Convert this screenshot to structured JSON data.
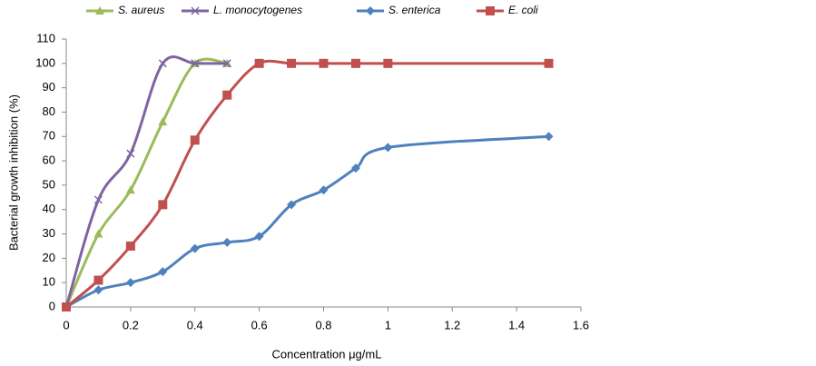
{
  "chart_data": {
    "type": "line",
    "xlabel": "Concentration μg/mL",
    "ylabel": "Bacterial growth inhibition (%)",
    "xlim": [
      0,
      1.6
    ],
    "xticks": [
      0,
      0.2,
      0.4,
      0.6,
      0.8,
      1,
      1.2,
      1.4,
      1.6
    ],
    "ylim": [
      0,
      110
    ],
    "yticks": [
      0,
      10,
      20,
      30,
      40,
      50,
      60,
      70,
      80,
      90,
      100,
      110
    ],
    "grid": false,
    "legend": "top",
    "series": [
      {
        "name": "S. aureus",
        "color": "#9bbb59",
        "marker": "triangle",
        "x": [
          0,
          0.1,
          0.2,
          0.3,
          0.4,
          0.5
        ],
        "values": [
          0,
          30,
          48,
          76,
          100,
          100
        ]
      },
      {
        "name": "L. monocytogenes",
        "color": "#8064a2",
        "marker": "cross",
        "x": [
          0,
          0.1,
          0.2,
          0.3,
          0.4,
          0.5
        ],
        "values": [
          0,
          44,
          63,
          100,
          100,
          100
        ]
      },
      {
        "name": "S. enterica",
        "color": "#4f81bd",
        "marker": "diamond",
        "x": [
          0,
          0.1,
          0.2,
          0.3,
          0.4,
          0.5,
          0.6,
          0.7,
          0.8,
          0.9,
          1,
          1.5
        ],
        "values": [
          0,
          7,
          10,
          14.5,
          24,
          26.5,
          29,
          42,
          48,
          57,
          65.5,
          70
        ]
      },
      {
        "name": "E. coli",
        "color": "#c0504d",
        "marker": "square",
        "x": [
          0,
          0.1,
          0.2,
          0.3,
          0.4,
          0.5,
          0.6,
          0.7,
          0.8,
          0.9,
          1,
          1.5
        ],
        "values": [
          0,
          11,
          25,
          42,
          68.5,
          87,
          100,
          100,
          100,
          100,
          100,
          100
        ]
      }
    ]
  }
}
